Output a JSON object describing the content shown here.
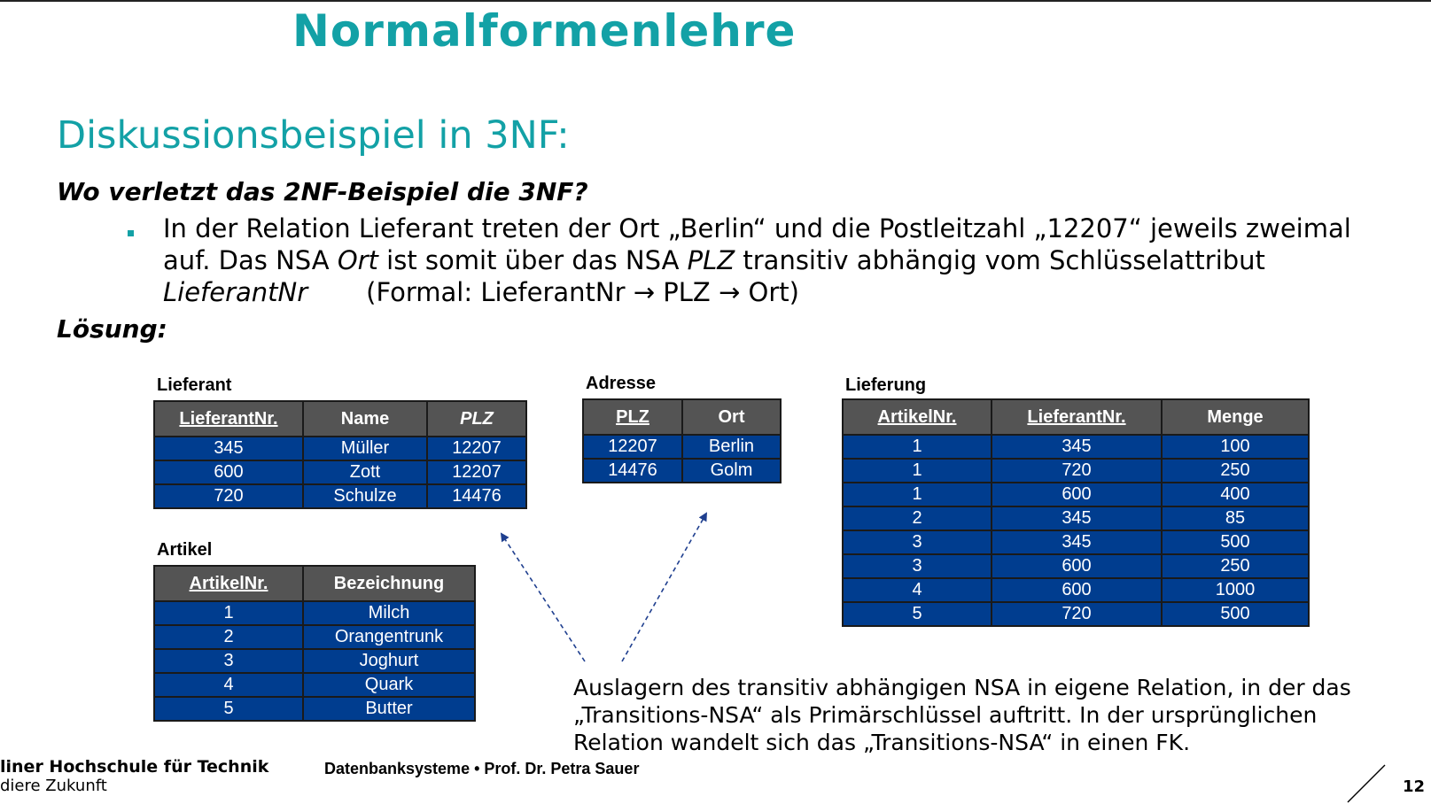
{
  "slide": {
    "title": "Normalformenlehre",
    "subtitle": "Diskussionsbeispiel in 3NF:",
    "question": "Wo verletzt das 2NF-Beispiel die 3NF?",
    "bullet": {
      "part1": "In der Relation Lieferant treten der Ort „Berlin“ und die Postleitzahl „12207“ jeweils zweimal auf. Das NSA ",
      "em1": "Ort",
      "part2": " ist somit über das NSA ",
      "em2": "PLZ",
      "part3": " transitiv abhängig vom Schlüsselattribut ",
      "em3": "LieferantNr",
      "formal": "(Formal: LieferantNr → PLZ → Ort)"
    },
    "solution_label": "Lösung:",
    "explanation": "Auslagern des transitiv abhängigen NSA in eigene Relation, in der das „Transitions-NSA“ als Primärschlüssel auftritt. In der ursprünglichen Relation wandelt sich das „Transitions-NSA“ in einen FK."
  },
  "tables": {
    "lieferant": {
      "caption": "Lieferant",
      "headers": [
        "LieferantNr.",
        "Name",
        "PLZ"
      ],
      "rows": [
        [
          "345",
          "Müller",
          "12207"
        ],
        [
          "600",
          "Zott",
          "12207"
        ],
        [
          "720",
          "Schulze",
          "14476"
        ]
      ]
    },
    "artikel": {
      "caption": "Artikel",
      "headers": [
        "ArtikelNr.",
        "Bezeichnung"
      ],
      "rows": [
        [
          "1",
          "Milch"
        ],
        [
          "2",
          "Orangentrunk"
        ],
        [
          "3",
          "Joghurt"
        ],
        [
          "4",
          "Quark"
        ],
        [
          "5",
          "Butter"
        ]
      ]
    },
    "adresse": {
      "caption": "Adresse",
      "headers": [
        "PLZ",
        "Ort"
      ],
      "rows": [
        [
          "12207",
          "Berlin"
        ],
        [
          "14476",
          "Golm"
        ]
      ]
    },
    "lieferung": {
      "caption": "Lieferung",
      "headers": [
        "ArtikelNr.",
        "LieferantNr.",
        "Menge"
      ],
      "rows": [
        [
          "1",
          "345",
          "100"
        ],
        [
          "1",
          "720",
          "250"
        ],
        [
          "1",
          "600",
          "400"
        ],
        [
          "2",
          "345",
          "85"
        ],
        [
          "3",
          "345",
          "500"
        ],
        [
          "3",
          "600",
          "250"
        ],
        [
          "4",
          "600",
          "1000"
        ],
        [
          "5",
          "720",
          "500"
        ]
      ]
    }
  },
  "footer": {
    "org": "liner Hochschule für Technik",
    "slogan": "diere Zukunft",
    "course": "Datenbanksysteme •  Prof. Dr. Petra Sauer",
    "page": "12"
  },
  "colors": {
    "accent": "#13a1a6",
    "header_bg": "#545454",
    "cell_bg": "#003d8f",
    "arrow": "#1f3f8f"
  }
}
